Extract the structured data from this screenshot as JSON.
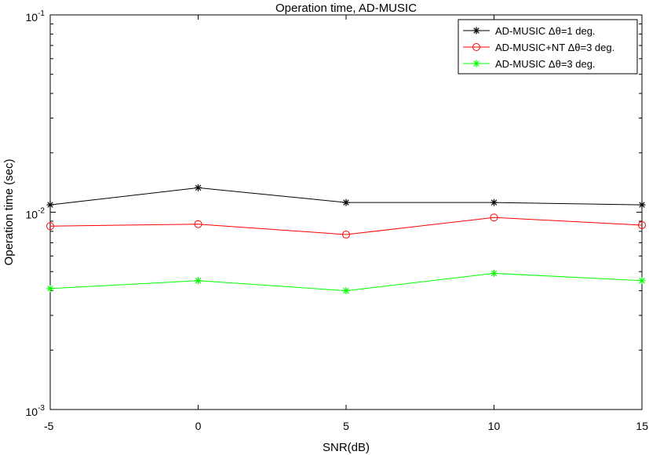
{
  "chart_data": {
    "type": "line",
    "title": "Operation time, AD-MUSIC",
    "xlabel": "SNR(dB)",
    "ylabel": "Operation time (sec)",
    "yscale": "log",
    "xlim": [
      -5,
      15
    ],
    "ylim": [
      0.001,
      0.1
    ],
    "x": [
      -5,
      0,
      5,
      10,
      15
    ],
    "xtick_labels": [
      "-5",
      "0",
      "5",
      "10",
      "15"
    ],
    "yticks": [
      {
        "value": 0.001,
        "base": "10",
        "exp": "-3"
      },
      {
        "value": 0.01,
        "base": "10",
        "exp": "-2"
      },
      {
        "value": 0.1,
        "base": "10",
        "exp": "-1"
      }
    ],
    "grid": false,
    "legend_position": "top-right",
    "series": [
      {
        "name_prefix": "AD-MUSIC ",
        "name_suffix": "=1 deg.",
        "color": "#000000",
        "marker": "asterisk",
        "values": [
          0.0109,
          0.0133,
          0.0112,
          0.0112,
          0.0109
        ]
      },
      {
        "name_prefix": "AD-MUSIC+NT ",
        "name_suffix": "=3 deg.",
        "color": "#ff0000",
        "marker": "circle",
        "values": [
          0.0085,
          0.0087,
          0.0077,
          0.0094,
          0.0086
        ]
      },
      {
        "name_prefix": "AD-MUSIC ",
        "name_suffix": "=3 deg.",
        "color": "#00ff00",
        "marker": "asterisk",
        "values": [
          0.0041,
          0.0045,
          0.004,
          0.0049,
          0.0045
        ]
      }
    ],
    "legend_symbol": "Δθ"
  }
}
